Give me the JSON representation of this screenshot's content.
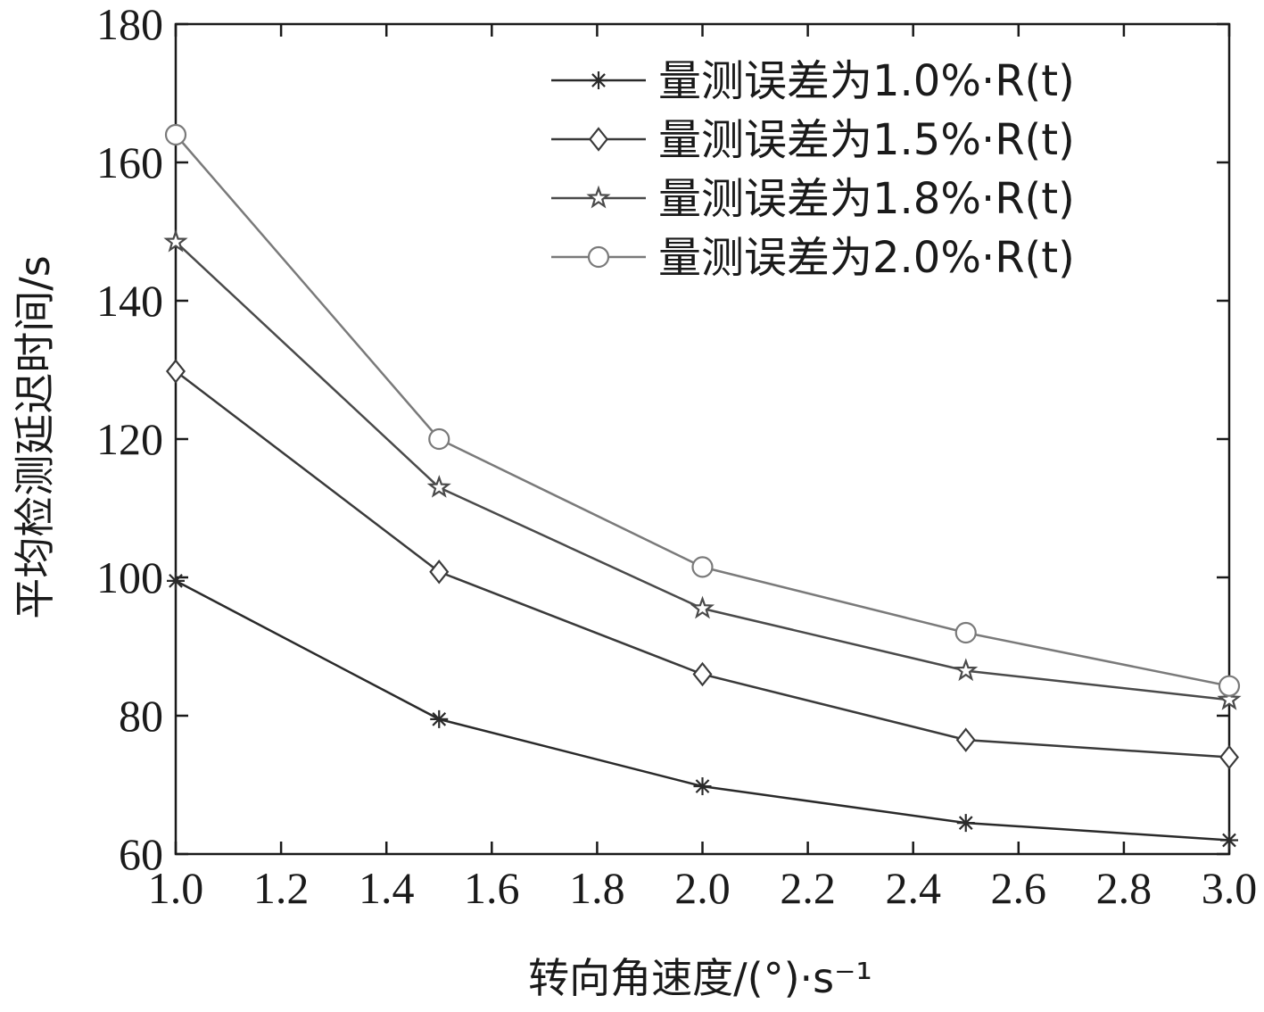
{
  "chart_data": {
    "type": "line",
    "xlabel": "转向角速度/(°)·s⁻¹",
    "ylabel": "平均检测延迟时间/s",
    "xlim": [
      1.0,
      3.0
    ],
    "ylim": [
      60,
      180
    ],
    "xticks": [
      "1.0",
      "1.2",
      "1.4",
      "1.6",
      "1.8",
      "2.0",
      "2.2",
      "2.4",
      "2.6",
      "2.8",
      "3.0"
    ],
    "yticks": [
      "60",
      "80",
      "100",
      "120",
      "140",
      "160",
      "180"
    ],
    "x": [
      1.0,
      1.5,
      2.0,
      2.5,
      3.0
    ],
    "grid": false,
    "legend_position": "top-right",
    "series": [
      {
        "name": "量测误差为1.0%·R(t)",
        "marker": "asterisk",
        "color": "#2a2a2a",
        "values": [
          99.5,
          79.5,
          69.8,
          64.5,
          62.0
        ]
      },
      {
        "name": "量测误差为1.5%·R(t)",
        "marker": "diamond",
        "color": "#3a3a3a",
        "values": [
          129.8,
          100.8,
          86.0,
          76.5,
          74.0
        ]
      },
      {
        "name": "量测误差为1.8%·R(t)",
        "marker": "star",
        "color": "#4a4a4a",
        "values": [
          148.5,
          113.0,
          95.5,
          86.5,
          82.3
        ]
      },
      {
        "name": "量测误差为2.0%·R(t)",
        "marker": "circle",
        "color": "#7a7a7a",
        "values": [
          164.0,
          120.0,
          101.5,
          92.0,
          84.3
        ]
      }
    ]
  }
}
